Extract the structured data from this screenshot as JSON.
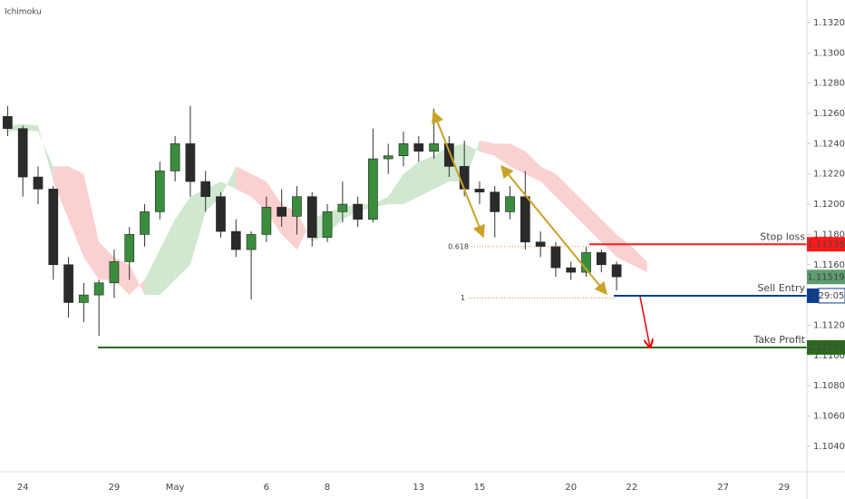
{
  "chart_data": {
    "type": "candlestick",
    "indicator": "Ichimoku",
    "categories": [
      null,
      "24",
      null,
      null,
      null,
      null,
      null,
      "29",
      null,
      null,
      null,
      "May",
      null,
      null,
      null,
      null,
      null,
      "6",
      null,
      null,
      null,
      "8",
      null,
      null,
      null,
      null,
      null,
      "13",
      null,
      null,
      null,
      "15",
      null,
      null,
      null,
      null,
      null,
      "20",
      null,
      null,
      null,
      "22",
      null,
      null,
      null,
      null,
      null,
      "27",
      null,
      null,
      null,
      "29",
      null
    ],
    "candles": {
      "open": [
        1.1258,
        1.125,
        1.1218,
        1.121,
        1.116,
        1.1135,
        1.114,
        1.1148,
        1.1162,
        1.118,
        1.1195,
        1.1222,
        1.124,
        1.1215,
        1.1205,
        1.1182,
        1.117,
        1.118,
        1.1198,
        1.1192,
        1.1205,
        1.1178,
        1.1195,
        1.12,
        1.119,
        1.123,
        1.1232,
        1.124,
        1.1235,
        1.124,
        1.1225,
        1.121,
        1.1208,
        1.1195,
        1.1205,
        1.1175,
        1.1172,
        1.1158,
        1.1155,
        1.1168,
        1.116,
        null,
        null,
        null,
        null,
        null,
        null,
        null,
        null,
        null,
        null,
        null,
        null
      ],
      "high": [
        1.1265,
        1.1252,
        1.1225,
        1.1212,
        1.1165,
        1.1148,
        1.115,
        1.117,
        1.1185,
        1.12,
        1.1228,
        1.1245,
        1.1265,
        1.1222,
        1.1208,
        1.119,
        1.1182,
        1.1205,
        1.121,
        1.1212,
        1.1208,
        1.12,
        1.1215,
        1.1205,
        1.125,
        1.124,
        1.1248,
        1.1245,
        1.1263,
        1.1245,
        1.1242,
        1.1215,
        1.1212,
        1.1212,
        1.1222,
        1.1182,
        1.1175,
        1.1162,
        1.1172,
        1.117,
        1.1162,
        null,
        null,
        null,
        null,
        null,
        null,
        null,
        null,
        null,
        null,
        null,
        null
      ],
      "low": [
        1.1245,
        1.1205,
        1.12,
        1.115,
        1.1125,
        1.1122,
        1.1113,
        1.1138,
        1.115,
        1.1172,
        1.119,
        1.1215,
        1.1205,
        1.1195,
        1.1178,
        1.1165,
        1.1137,
        1.1175,
        1.1185,
        1.118,
        1.1172,
        1.1175,
        1.1188,
        1.1185,
        1.1188,
        1.122,
        1.1225,
        1.1228,
        1.123,
        1.1218,
        1.1205,
        1.12,
        1.1178,
        1.119,
        1.117,
        1.1165,
        1.1152,
        1.115,
        1.1152,
        1.1155,
        1.1143,
        null,
        null,
        null,
        null,
        null,
        null,
        null,
        null,
        null,
        null,
        null,
        null
      ],
      "close": [
        1.125,
        1.1218,
        1.121,
        1.116,
        1.1135,
        1.114,
        1.1148,
        1.1162,
        1.118,
        1.1195,
        1.1222,
        1.124,
        1.1215,
        1.1205,
        1.1182,
        1.117,
        1.118,
        1.1198,
        1.1192,
        1.1205,
        1.1178,
        1.1195,
        1.12,
        1.119,
        1.123,
        1.1232,
        1.124,
        1.1235,
        1.124,
        1.1225,
        1.121,
        1.1208,
        1.1195,
        1.1205,
        1.1175,
        1.1172,
        1.1158,
        1.1155,
        1.1168,
        1.116,
        1.1152,
        null,
        null,
        null,
        null,
        null,
        null,
        null,
        null,
        null,
        null,
        null,
        null
      ],
      "up_color": "#3a8d3d",
      "down_color": "#2b2b2b"
    },
    "cloud": {
      "span_a": [
        1.1252,
        1.1253,
        1.1252,
        1.1215,
        1.119,
        1.1165,
        1.115,
        1.115,
        1.114,
        1.115,
        1.117,
        1.119,
        1.1205,
        1.121,
        1.1215,
        1.121,
        1.1205,
        1.1195,
        1.118,
        1.117,
        1.119,
        1.1195,
        1.1198,
        1.12,
        1.12,
        1.1205,
        1.122,
        1.1228,
        1.1232,
        1.1238,
        1.124,
        1.1235,
        1.1232,
        1.1225,
        1.122,
        1.1215,
        1.1205,
        1.1195,
        1.1185,
        1.1175,
        1.1165,
        1.116,
        1.1155,
        null,
        null,
        null,
        null,
        null,
        null,
        null,
        null,
        null,
        null
      ],
      "span_b": [
        1.1248,
        1.1249,
        1.1248,
        1.1225,
        1.1225,
        1.122,
        1.1175,
        1.1165,
        1.116,
        1.114,
        1.114,
        1.115,
        1.116,
        1.1195,
        1.1205,
        1.1225,
        1.122,
        1.1215,
        1.12,
        1.1195,
        1.1175,
        1.118,
        1.119,
        1.1195,
        1.1198,
        1.12,
        1.12,
        1.1205,
        1.121,
        1.1215,
        1.1215,
        1.1242,
        1.124,
        1.124,
        1.1235,
        1.1225,
        1.122,
        1.121,
        1.12,
        1.119,
        1.118,
        1.1172,
        1.1162,
        null,
        null,
        null,
        null,
        null,
        null,
        null,
        null,
        null,
        null
      ],
      "bull_color": "#cfe8cf",
      "bear_color": "#fbd0d0"
    },
    "ylim": [
      1.10231,
      1.1335
    ],
    "yticks": [
      {
        "value": 1.104,
        "label": "1.10400"
      },
      {
        "value": 1.106,
        "label": "1.10600"
      },
      {
        "value": 1.108,
        "label": "1.10800"
      },
      {
        "value": 1.11,
        "label": "1.11000"
      },
      {
        "value": 1.112,
        "label": "1.11200"
      },
      {
        "value": 1.114,
        "label": "1.11400"
      },
      {
        "value": 1.116,
        "label": "1.11600"
      },
      {
        "value": 1.118,
        "label": "1.11800"
      },
      {
        "value": 1.12,
        "label": "1.12000"
      },
      {
        "value": 1.122,
        "label": "1.12200"
      },
      {
        "value": 1.124,
        "label": "1.12400"
      },
      {
        "value": 1.126,
        "label": "1.12600"
      },
      {
        "value": 1.128,
        "label": "1.12800"
      },
      {
        "value": 1.13,
        "label": "1.13000"
      },
      {
        "value": 1.132,
        "label": "1.13200"
      }
    ],
    "grid": false,
    "fib_levels": [
      {
        "level": 0.618,
        "price": 1.1172
      },
      {
        "level": 1,
        "price": 1.1138
      }
    ],
    "fib_color": "#c9a227",
    "levels": [
      {
        "name": "Stop loss",
        "price": 1.11735,
        "color": "#ff1a1a"
      },
      {
        "name": "Sell Entry",
        "price": 1.11395,
        "color": "#0b3d91",
        "price_label": "1",
        "countdown": "29:05"
      },
      {
        "name": "Take Profit",
        "price": 1.11053,
        "color": "#2d6a1f"
      }
    ],
    "current_price": 1.11519,
    "current_color": "#5d9c6f"
  }
}
